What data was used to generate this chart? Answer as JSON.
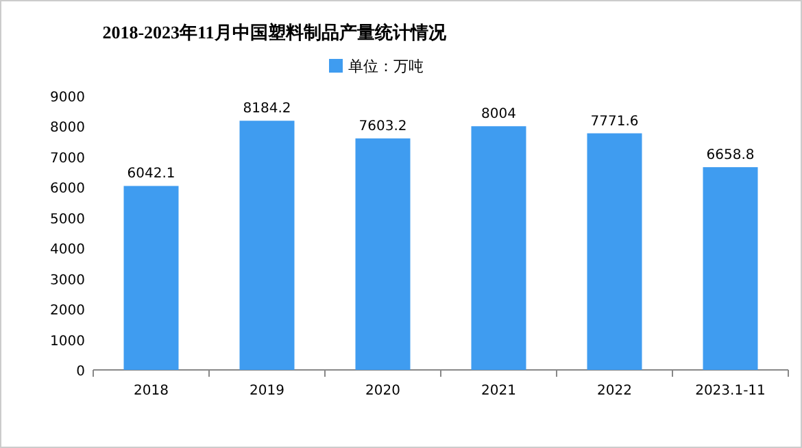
{
  "chart_data": {
    "type": "bar",
    "title": "2018-2023年11月中国塑料制品产量统计情况",
    "categories": [
      "2018",
      "2019",
      "2020",
      "2021",
      "2022",
      "2023.1-11"
    ],
    "series": [
      {
        "name": "单位：万吨",
        "color": "#3f9cf0",
        "values": [
          6042.1,
          8184.2,
          7603.2,
          8004,
          7771.6,
          6658.8
        ]
      }
    ],
    "ylim": [
      0,
      9000
    ],
    "yticks": [
      0,
      1000,
      2000,
      3000,
      4000,
      5000,
      6000,
      7000,
      8000,
      9000
    ],
    "data_labels": true,
    "legend": "top"
  }
}
